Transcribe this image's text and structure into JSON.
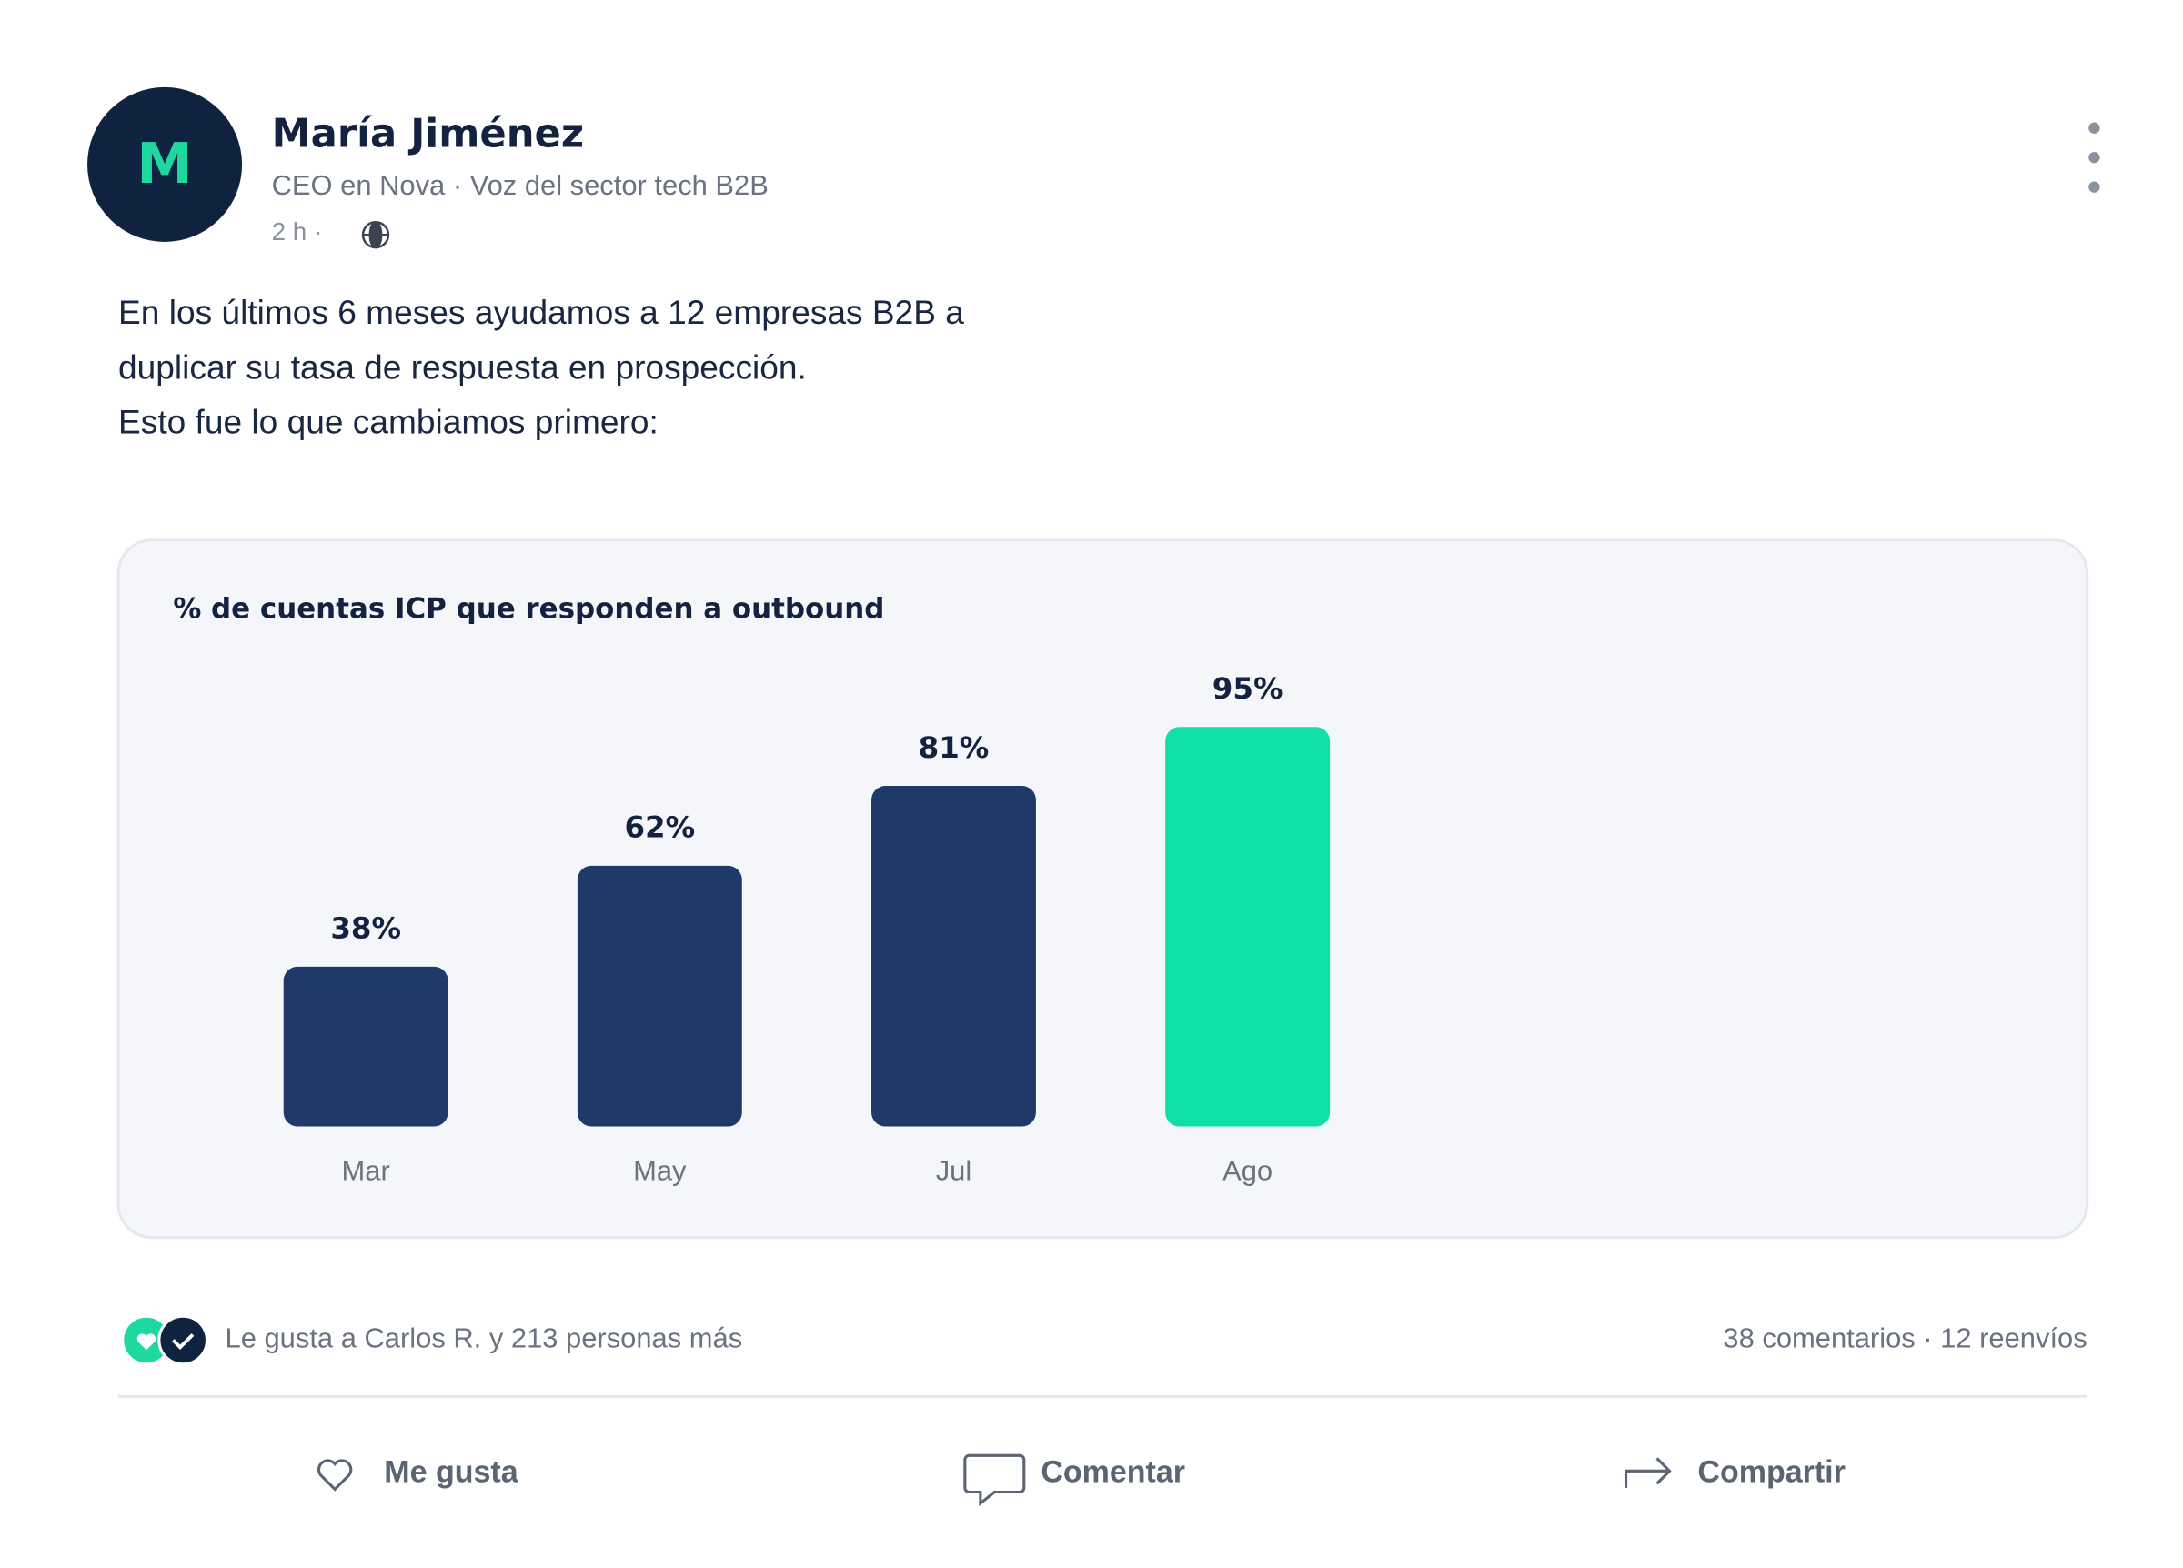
{
  "author": {
    "initial": "M",
    "name": "María Jiménez",
    "headline": "CEO en Nova · Voz del sector tech B2B",
    "time": "2 h ·"
  },
  "post": {
    "lines": [
      "En los últimos 6 meses ayudamos a 12 empresas B2B a",
      "duplicar su tasa de respuesta en prospección.",
      "Esto fue lo que cambiamos primero:"
    ]
  },
  "chart_data": {
    "type": "bar",
    "title": "% de cuentas ICP que responden a outbound",
    "categories": [
      "Mar",
      "May",
      "Jul",
      "Ago"
    ],
    "values": [
      38,
      62,
      81,
      95
    ],
    "value_labels": [
      "38%",
      "62%",
      "81%",
      "95%"
    ],
    "colors": [
      "#1e3a68",
      "#1e3a68",
      "#1e3a68",
      "#10dfa8"
    ],
    "ylim": [
      0,
      100
    ]
  },
  "reactions": {
    "summary": "Le gusta a Carlos R. y 213 personas más",
    "stats": "38 comentarios · 12 reenvíos"
  },
  "actions": [
    "Me gusta",
    "Comentar",
    "Compartir"
  ]
}
